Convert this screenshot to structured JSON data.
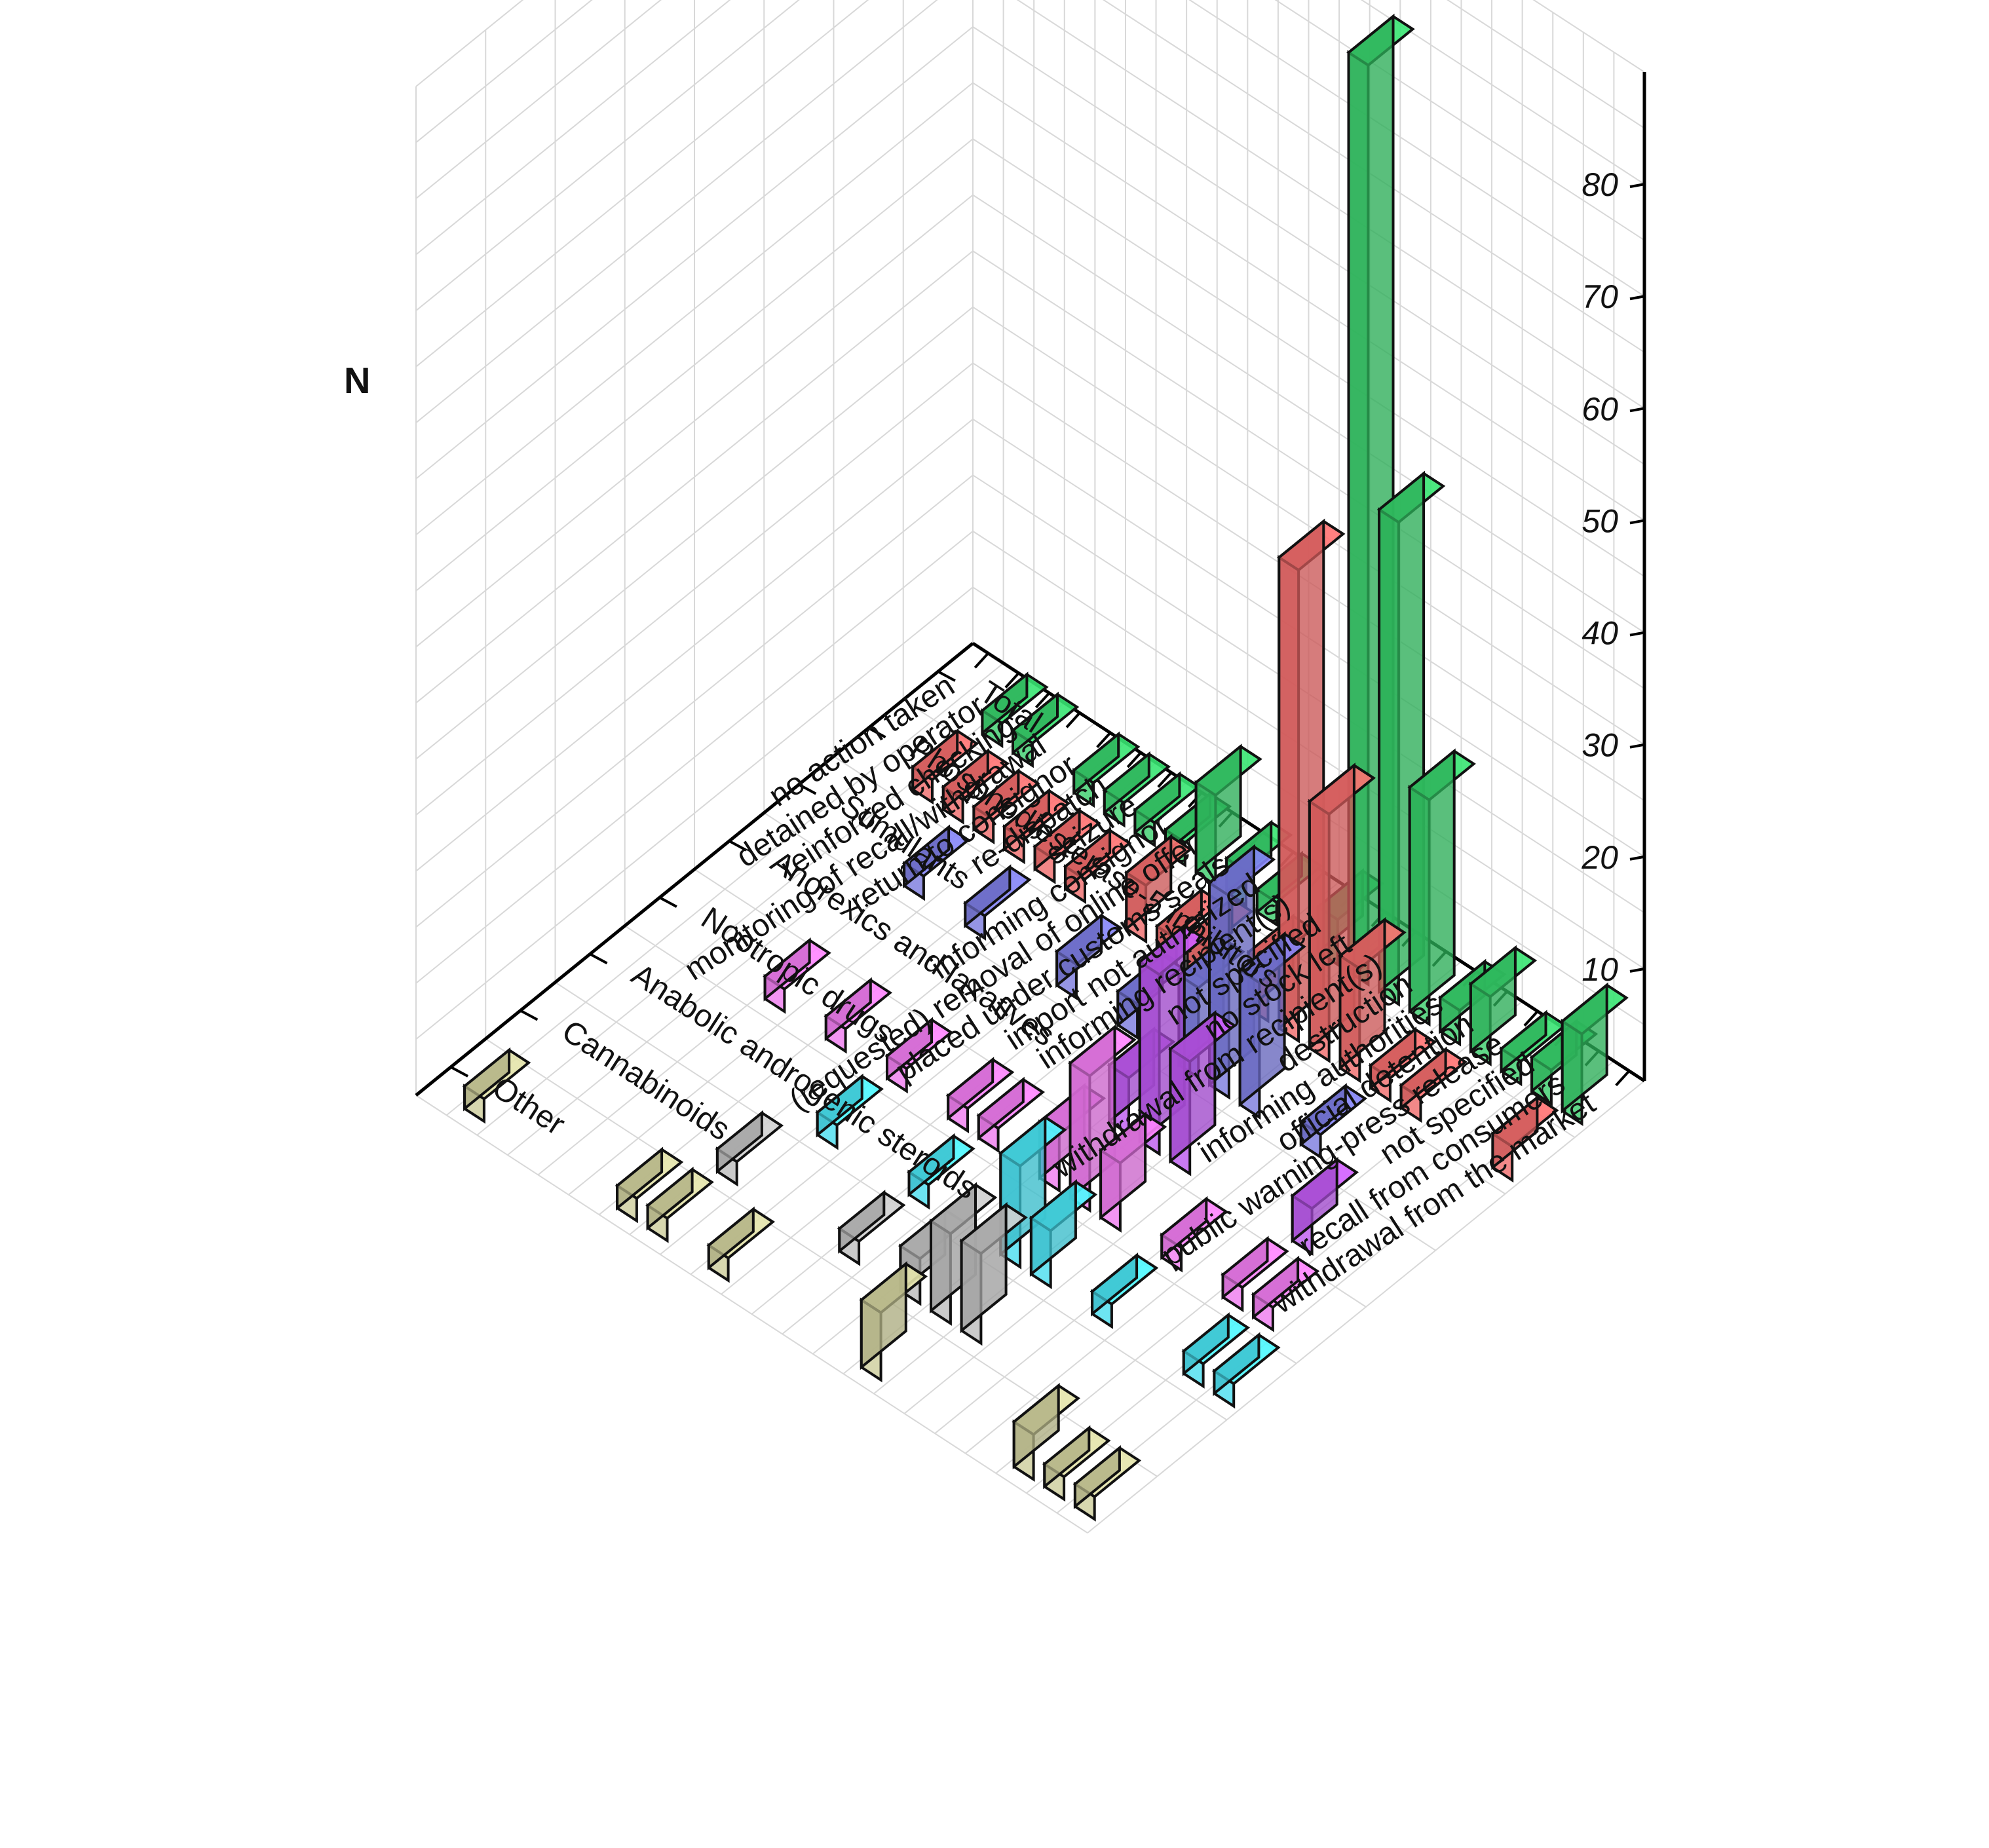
{
  "chart_data": {
    "type": "bar",
    "subtype": "3d-bar",
    "title": "",
    "zlabel": "N",
    "z_ticks": [
      "10",
      "20",
      "30",
      "40",
      "50",
      "60",
      "70",
      "80"
    ],
    "zlim": [
      0,
      90
    ],
    "grid": true,
    "x_categories": [
      "withdrawal from the market",
      "recall from consumers",
      "not specified",
      "public warning-press release",
      "official detention",
      "informing authorities",
      "destruction",
      "withdrawal from recipient(s)",
      "no stock left",
      "not specified",
      "informing recipient(s)",
      "import not authorized",
      "placed under customs seals",
      "(requested) removal of online offer",
      "informing consignor",
      "seizure",
      "re-dispatch",
      "return to consignor",
      "monitoring of recall/withdrawal",
      "reinforced checking",
      "detained by operator",
      "no action taken"
    ],
    "y_categories": [
      "Total",
      "Phosphodiesterase-5 inhibitors",
      "Stimulants",
      "Anorexics and laxatives",
      "Nootropic drugs",
      "Anabolic androgenic steroids",
      "Cannabinoids",
      "Other"
    ],
    "series_colors": {
      "Total": "#33cc66",
      "Phosphodiesterase-5 inhibitors": "#ee6666",
      "Stimulants": "#7777dd",
      "Anorexics and laxatives": "#bb55ee",
      "Nootropic drugs": "#ee77ee",
      "Anabolic androgenic steroids": "#44ddee",
      "Cannabinoids": "#bbbbbb",
      "Other": "#cccc99"
    },
    "bars": [
      {
        "x": "withdrawal from the market",
        "y": "Total",
        "value": 8
      },
      {
        "x": "withdrawal from the market",
        "y": "Phosphodiesterase-5 inhibitors",
        "value": 3
      },
      {
        "x": "withdrawal from the market",
        "y": "Anabolic androgenic steroids",
        "value": 2
      },
      {
        "x": "withdrawal from the market",
        "y": "Other",
        "value": 2
      },
      {
        "x": "recall from consumers",
        "y": "Total",
        "value": 3
      },
      {
        "x": "recall from consumers",
        "y": "Nootropic drugs",
        "value": 2
      },
      {
        "x": "recall from consumers",
        "y": "Anabolic androgenic steroids",
        "value": 2
      },
      {
        "x": "recall from consumers",
        "y": "Other",
        "value": 2
      },
      {
        "x": "not specified",
        "y": "Total",
        "value": 2
      },
      {
        "x": "not specified",
        "y": "Nootropic drugs",
        "value": 2
      },
      {
        "x": "public warning-press release",
        "y": "Total",
        "value": 6
      },
      {
        "x": "public warning-press release",
        "y": "Phosphodiesterase-5 inhibitors",
        "value": 2
      },
      {
        "x": "official detention",
        "y": "Total",
        "value": 3
      },
      {
        "x": "official detention",
        "y": "Phosphodiesterase-5 inhibitors",
        "value": 2
      },
      {
        "x": "official detention",
        "y": "Stimulants",
        "value": 2
      },
      {
        "x": "official detention",
        "y": "Nootropic drugs",
        "value": 2
      },
      {
        "x": "official detention",
        "y": "Anabolic androgenic steroids",
        "value": 2
      },
      {
        "x": "informing authorities",
        "y": "Total",
        "value": 20
      },
      {
        "x": "informing authorities",
        "y": "Phosphodiesterase-5 inhibitors",
        "value": 10
      },
      {
        "x": "destruction",
        "y": "Total",
        "value": 43
      },
      {
        "x": "destruction",
        "y": "Phosphodiesterase-5 inhibitors",
        "value": 22
      },
      {
        "x": "destruction",
        "y": "Stimulants",
        "value": 12
      },
      {
        "x": "destruction",
        "y": "Anorexics and laxatives",
        "value": 10
      },
      {
        "x": "destruction",
        "y": "Nootropic drugs",
        "value": 6
      },
      {
        "x": "destruction",
        "y": "Anabolic androgenic steroids",
        "value": 5
      },
      {
        "x": "destruction",
        "y": "Cannabinoids",
        "value": 8
      },
      {
        "x": "withdrawal from recipient(s)",
        "y": "Total",
        "value": 82
      },
      {
        "x": "withdrawal from recipient(s)",
        "y": "Phosphodiesterase-5 inhibitors",
        "value": 42
      },
      {
        "x": "withdrawal from recipient(s)",
        "y": "Stimulants",
        "value": 18
      },
      {
        "x": "withdrawal from recipient(s)",
        "y": "Anorexics and laxatives",
        "value": 16
      },
      {
        "x": "withdrawal from recipient(s)",
        "y": "Nootropic drugs",
        "value": 12
      },
      {
        "x": "withdrawal from recipient(s)",
        "y": "Anabolic androgenic steroids",
        "value": 9
      },
      {
        "x": "withdrawal from recipient(s)",
        "y": "Cannabinoids",
        "value": 8
      },
      {
        "x": "withdrawal from recipient(s)",
        "y": "Other",
        "value": 6
      },
      {
        "x": "no stock left",
        "y": "Total",
        "value": 4
      },
      {
        "x": "no stock left",
        "y": "Phosphodiesterase-5 inhibitors",
        "value": 5
      },
      {
        "x": "no stock left",
        "y": "Stimulants",
        "value": 8
      },
      {
        "x": "no stock left",
        "y": "Anorexics and laxatives",
        "value": 5
      },
      {
        "x": "no stock left",
        "y": "Nootropic drugs",
        "value": 5
      },
      {
        "x": "no stock left",
        "y": "Cannabinoids",
        "value": 4
      },
      {
        "x": "not specified",
        "y": "Anorexics and laxatives",
        "value": 4
      },
      {
        "x": "not specified",
        "y": "Other",
        "value": 4
      },
      {
        "x": "informing recipient(s)",
        "y": "Total",
        "value": 2
      },
      {
        "x": "informing recipient(s)",
        "y": "Phosphodiesterase-5 inhibitors",
        "value": 3
      },
      {
        "x": "informing recipient(s)",
        "y": "Stimulants",
        "value": 3
      },
      {
        "x": "informing recipient(s)",
        "y": "Nootropic drugs",
        "value": 2
      },
      {
        "x": "informing recipient(s)",
        "y": "Anabolic androgenic steroids",
        "value": 2
      },
      {
        "x": "informing recipient(s)",
        "y": "Cannabinoids",
        "value": 2
      },
      {
        "x": "import not authorized",
        "y": "Total",
        "value": 3
      },
      {
        "x": "import not authorized",
        "y": "Phosphodiesterase-5 inhibitors",
        "value": 2
      },
      {
        "x": "import not authorized",
        "y": "Nootropic drugs",
        "value": 2
      },
      {
        "x": "placed under customs seals",
        "y": "Total",
        "value": 8
      },
      {
        "x": "placed under customs seals",
        "y": "Phosphodiesterase-5 inhibitors",
        "value": 5
      },
      {
        "x": "placed under customs seals",
        "y": "Stimulants",
        "value": 3
      },
      {
        "x": "placed under customs seals",
        "y": "Other",
        "value": 2
      },
      {
        "x": "(requested) removal of online offer",
        "y": "Total",
        "value": 2
      },
      {
        "x": "(requested) removal of online offer",
        "y": "Nootropic drugs",
        "value": 2
      },
      {
        "x": "(requested) removal of online offer",
        "y": "Anabolic androgenic steroids",
        "value": 2
      },
      {
        "x": "informing consignor",
        "y": "Total",
        "value": 2
      },
      {
        "x": "informing consignor",
        "y": "Phosphodiesterase-5 inhibitors",
        "value": 2
      },
      {
        "x": "informing consignor",
        "y": "Cannabinoids",
        "value": 2
      },
      {
        "x": "informing consignor",
        "y": "Other",
        "value": 2
      },
      {
        "x": "seizure",
        "y": "Total",
        "value": 2
      },
      {
        "x": "seizure",
        "y": "Phosphodiesterase-5 inhibitors",
        "value": 2
      },
      {
        "x": "seizure",
        "y": "Stimulants",
        "value": 2
      },
      {
        "x": "seizure",
        "y": "Nootropic drugs",
        "value": 2
      },
      {
        "x": "seizure",
        "y": "Other",
        "value": 2
      },
      {
        "x": "re-dispatch",
        "y": "Total",
        "value": 2
      },
      {
        "x": "re-dispatch",
        "y": "Phosphodiesterase-5 inhibitors",
        "value": 2
      },
      {
        "x": "return to consignor",
        "y": "Nootropic drugs",
        "value": 2
      },
      {
        "x": "return to consignor",
        "y": "Stimulants",
        "value": 2
      },
      {
        "x": "return to consignor",
        "y": "Phosphodiesterase-5 inhibitors",
        "value": 2
      },
      {
        "x": "monitoring of recall/withdrawal",
        "y": "Total",
        "value": 2
      },
      {
        "x": "monitoring of recall/withdrawal",
        "y": "Phosphodiesterase-5 inhibitors",
        "value": 2
      },
      {
        "x": "reinforced checking",
        "y": "Total",
        "value": 2
      },
      {
        "x": "reinforced checking",
        "y": "Phosphodiesterase-5 inhibitors",
        "value": 2
      },
      {
        "x": "detained by operator",
        "y": "Other",
        "value": 2
      }
    ]
  }
}
